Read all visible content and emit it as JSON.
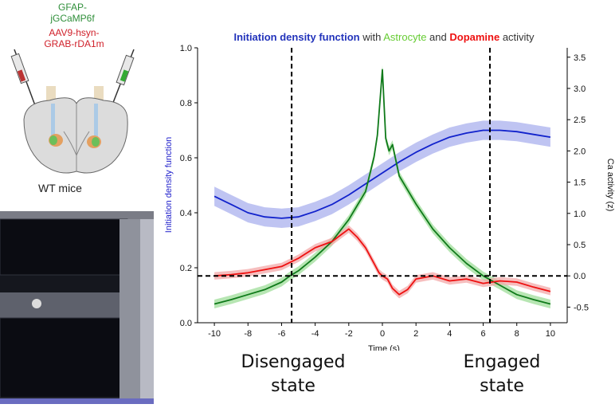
{
  "left_panel": {
    "virus_green_line1": "GFAP-",
    "virus_green_line2": "jGCaMP6f",
    "virus_red_line1": "AAV9-hsyn-",
    "virus_red_line2": "GRAB-rDA1m",
    "mouse_label": "WT mice"
  },
  "annotations": {
    "left_state_line1": "Disengaged",
    "left_state_line2": "state",
    "right_state_line1": "Engaged",
    "right_state_line2": "state"
  },
  "chart_data": {
    "type": "line",
    "title_parts": [
      {
        "text": "Initiation density function",
        "color": "#2233bb",
        "bold": true
      },
      {
        "text": " with ",
        "color": "#333333",
        "bold": false
      },
      {
        "text": "Astrocyte",
        "color": "#66cc33",
        "bold": false
      },
      {
        "text": " and ",
        "color": "#333333",
        "bold": false
      },
      {
        "text": "Dopamine",
        "color": "#ee1111",
        "bold": true
      },
      {
        "text": " activity",
        "color": "#333333",
        "bold": false
      }
    ],
    "xlabel": "Time (s)",
    "ylabel_left": "Initiation density function",
    "ylabel_right": "Ca activity (z)",
    "xlim": [
      -11,
      11
    ],
    "ylim_left": [
      0,
      1.0
    ],
    "ylim_right": [
      -0.75,
      3.65
    ],
    "xticks": [
      -10,
      -8,
      -6,
      -4,
      -2,
      0,
      2,
      4,
      6,
      8,
      10
    ],
    "yticks_left": [
      0.0,
      0.2,
      0.4,
      0.6,
      0.8,
      1.0
    ],
    "yticks_right": [
      -0.5,
      0.0,
      0.5,
      1.0,
      1.5,
      2.0,
      2.5,
      3.0,
      3.5
    ],
    "vlines": [
      -5.4,
      6.4
    ],
    "hline_right": 0.0,
    "series": [
      {
        "key": "idf",
        "axis": "left",
        "color": "#1122cc",
        "band": "#aab0ee",
        "x": [
          -10,
          -9,
          -8,
          -7,
          -6,
          -5,
          -4,
          -3,
          -2,
          -1,
          0,
          1,
          2,
          3,
          4,
          5,
          6,
          7,
          8,
          9,
          10
        ],
        "y": [
          0.46,
          0.43,
          0.4,
          0.385,
          0.38,
          0.385,
          0.405,
          0.43,
          0.465,
          0.505,
          0.545,
          0.585,
          0.62,
          0.65,
          0.675,
          0.69,
          0.7,
          0.7,
          0.695,
          0.685,
          0.675
        ],
        "err": 0.035
      },
      {
        "key": "astrocyte",
        "axis": "right",
        "color": "#0f7a1a",
        "band": "#9fdd9a",
        "x": [
          -10,
          -9,
          -8,
          -7,
          -6,
          -5.5,
          -5,
          -4,
          -3,
          -2,
          -1,
          -0.5,
          -0.3,
          0,
          0.2,
          0.4,
          0.6,
          1,
          2,
          3,
          4,
          5,
          6,
          7,
          8,
          9,
          10
        ],
        "y": [
          -0.45,
          -0.38,
          -0.3,
          -0.22,
          -0.1,
          0.0,
          0.08,
          0.3,
          0.55,
          0.9,
          1.35,
          1.9,
          2.25,
          3.3,
          2.2,
          2.0,
          2.1,
          1.6,
          1.15,
          0.75,
          0.45,
          0.2,
          0.0,
          -0.15,
          -0.3,
          -0.38,
          -0.45
        ],
        "err": 0.07
      },
      {
        "key": "dopamine",
        "axis": "right",
        "color": "#ee1111",
        "band": "#f3a8a8",
        "x": [
          -10,
          -9,
          -8,
          -7,
          -6,
          -5,
          -4,
          -3,
          -2,
          -1.5,
          -1,
          -0.5,
          -0.2,
          0,
          0.3,
          0.6,
          1,
          1.5,
          2,
          3,
          4,
          5,
          6,
          7,
          8,
          9,
          10
        ],
        "y": [
          0.0,
          0.02,
          0.05,
          0.1,
          0.15,
          0.28,
          0.45,
          0.55,
          0.75,
          0.62,
          0.45,
          0.2,
          0.05,
          0.0,
          -0.05,
          -0.2,
          -0.3,
          -0.22,
          -0.05,
          0.0,
          -0.08,
          -0.05,
          -0.12,
          -0.08,
          -0.1,
          -0.18,
          -0.25
        ],
        "err": 0.06
      }
    ]
  }
}
